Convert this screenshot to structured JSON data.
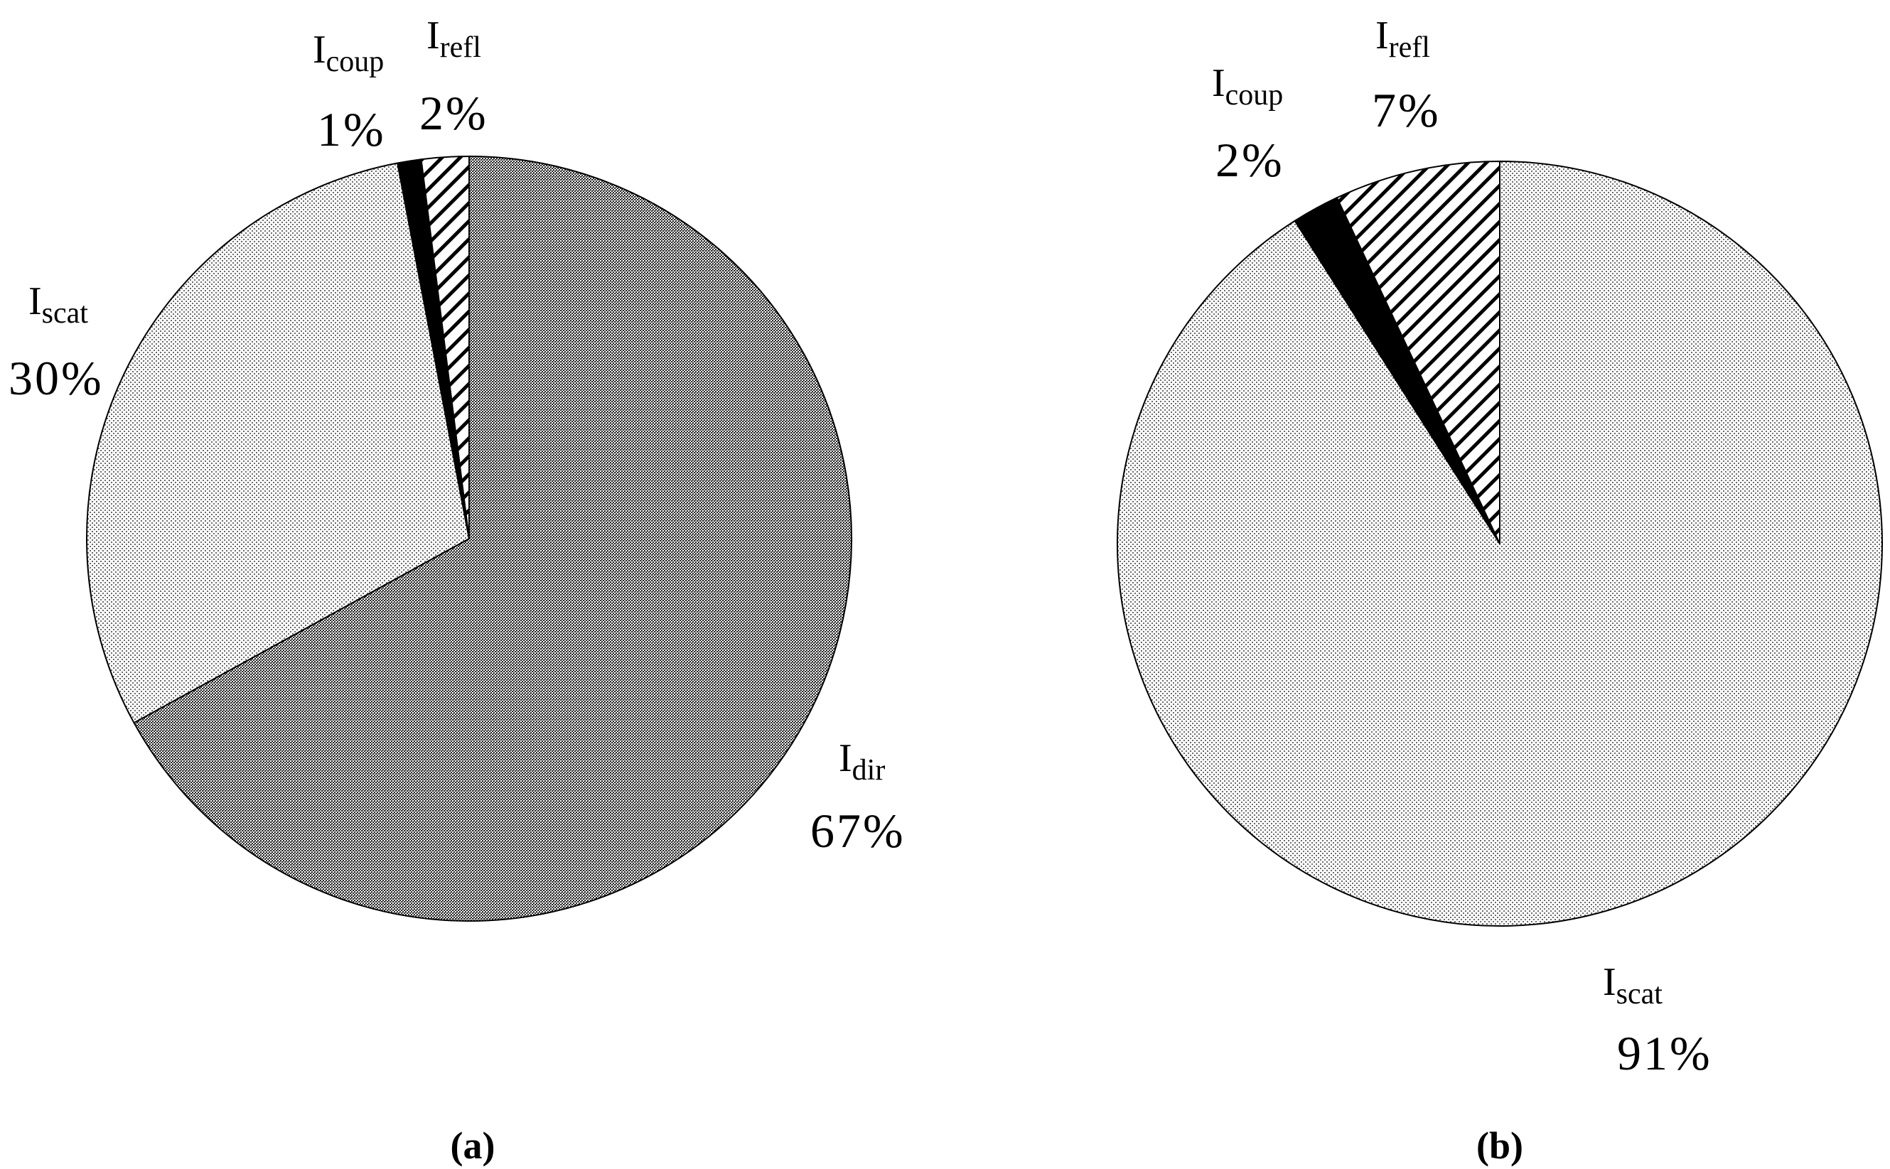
{
  "chart_data": [
    {
      "type": "pie",
      "panel_label": "(a)",
      "slices": [
        {
          "label_main": "I",
          "label_sub": "dir",
          "percent_text": "67%",
          "value": 67,
          "fill": "pattern-dense"
        },
        {
          "label_main": "I",
          "label_sub": "scat",
          "percent_text": "30%",
          "value": 30,
          "fill": "pattern-dots"
        },
        {
          "label_main": "I",
          "label_sub": "coup",
          "percent_text": "1%",
          "value": 1,
          "fill": "solid-black"
        },
        {
          "label_main": "I",
          "label_sub": "refl",
          "percent_text": "2%",
          "value": 2,
          "fill": "pattern-hatch"
        }
      ],
      "start": "12 o'clock",
      "direction": "clockwise"
    },
    {
      "type": "pie",
      "panel_label": "(b)",
      "slices": [
        {
          "label_main": "I",
          "label_sub": "scat",
          "percent_text": "91%",
          "value": 91,
          "fill": "pattern-dots"
        },
        {
          "label_main": "I",
          "label_sub": "coup",
          "percent_text": "2%",
          "value": 2,
          "fill": "solid-black"
        },
        {
          "label_main": "I",
          "label_sub": "refl",
          "percent_text": "7%",
          "value": 7,
          "fill": "pattern-hatch"
        }
      ],
      "start": "12 o'clock",
      "direction": "clockwise"
    }
  ]
}
